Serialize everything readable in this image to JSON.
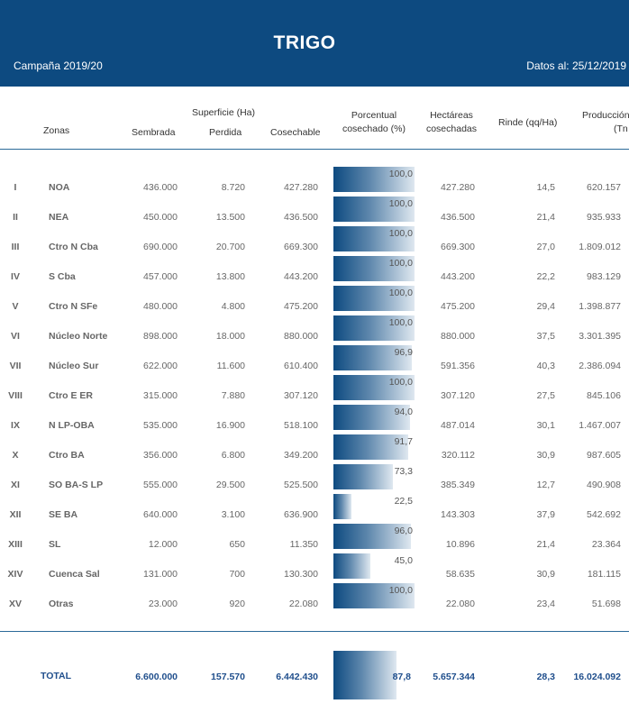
{
  "header": {
    "title": "TRIGO",
    "campaign": "Campaña 2019/20",
    "date": "Datos al: 25/12/2019"
  },
  "columns": {
    "zonas": "Zonas",
    "superficie": "Superficie (Ha)",
    "sembrada": "Sembrada",
    "perdida": "Perdida",
    "cosechable": "Cosechable",
    "porcentual_1": "Porcentual",
    "porcentual_2": "cosechado (%)",
    "hectareas_1": "Hectáreas",
    "hectareas_2": "cosechadas",
    "rinde": "Rinde (qq/Ha)",
    "produccion_1": "Producción",
    "produccion_2": "(Tn"
  },
  "rows": [
    {
      "num": "I",
      "zona": "NOA",
      "sembrada": "436.000",
      "perdida": "8.720",
      "cosechable": "427.280",
      "pct_label": "100,0",
      "pct": 100.0,
      "hectareas": "427.280",
      "rinde": "14,5",
      "produccion": "620.157"
    },
    {
      "num": "II",
      "zona": "NEA",
      "sembrada": "450.000",
      "perdida": "13.500",
      "cosechable": "436.500",
      "pct_label": "100,0",
      "pct": 100.0,
      "hectareas": "436.500",
      "rinde": "21,4",
      "produccion": "935.933"
    },
    {
      "num": "III",
      "zona": "Ctro N Cba",
      "sembrada": "690.000",
      "perdida": "20.700",
      "cosechable": "669.300",
      "pct_label": "100,0",
      "pct": 100.0,
      "hectareas": "669.300",
      "rinde": "27,0",
      "produccion": "1.809.012"
    },
    {
      "num": "IV",
      "zona": "S Cba",
      "sembrada": "457.000",
      "perdida": "13.800",
      "cosechable": "443.200",
      "pct_label": "100,0",
      "pct": 100.0,
      "hectareas": "443.200",
      "rinde": "22,2",
      "produccion": "983.129"
    },
    {
      "num": "V",
      "zona": "Ctro N SFe",
      "sembrada": "480.000",
      "perdida": "4.800",
      "cosechable": "475.200",
      "pct_label": "100,0",
      "pct": 100.0,
      "hectareas": "475.200",
      "rinde": "29,4",
      "produccion": "1.398.877"
    },
    {
      "num": "VI",
      "zona": "Núcleo Norte",
      "sembrada": "898.000",
      "perdida": "18.000",
      "cosechable": "880.000",
      "pct_label": "100,0",
      "pct": 100.0,
      "hectareas": "880.000",
      "rinde": "37,5",
      "produccion": "3.301.395"
    },
    {
      "num": "VII",
      "zona": "Núcleo Sur",
      "sembrada": "622.000",
      "perdida": "11.600",
      "cosechable": "610.400",
      "pct_label": "96,9",
      "pct": 96.9,
      "hectareas": "591.356",
      "rinde": "40,3",
      "produccion": "2.386.094"
    },
    {
      "num": "VIII",
      "zona": "Ctro E ER",
      "sembrada": "315.000",
      "perdida": "7.880",
      "cosechable": "307.120",
      "pct_label": "100,0",
      "pct": 100.0,
      "hectareas": "307.120",
      "rinde": "27,5",
      "produccion": "845.106"
    },
    {
      "num": "IX",
      "zona": "N LP-OBA",
      "sembrada": "535.000",
      "perdida": "16.900",
      "cosechable": "518.100",
      "pct_label": "94,0",
      "pct": 94.0,
      "hectareas": "487.014",
      "rinde": "30,1",
      "produccion": "1.467.007"
    },
    {
      "num": "X",
      "zona": "Ctro BA",
      "sembrada": "356.000",
      "perdida": "6.800",
      "cosechable": "349.200",
      "pct_label": "91,7",
      "pct": 91.7,
      "hectareas": "320.112",
      "rinde": "30,9",
      "produccion": "987.605"
    },
    {
      "num": "XI",
      "zona": "SO BA-S LP",
      "sembrada": "555.000",
      "perdida": "29.500",
      "cosechable": "525.500",
      "pct_label": "73,3",
      "pct": 73.3,
      "hectareas": "385.349",
      "rinde": "12,7",
      "produccion": "490.908"
    },
    {
      "num": "XII",
      "zona": "SE BA",
      "sembrada": "640.000",
      "perdida": "3.100",
      "cosechable": "636.900",
      "pct_label": "22,5",
      "pct": 22.5,
      "hectareas": "143.303",
      "rinde": "37,9",
      "produccion": "542.692"
    },
    {
      "num": "XIII",
      "zona": "SL",
      "sembrada": "12.000",
      "perdida": "650",
      "cosechable": "11.350",
      "pct_label": "96,0",
      "pct": 96.0,
      "hectareas": "10.896",
      "rinde": "21,4",
      "produccion": "23.364"
    },
    {
      "num": "XIV",
      "zona": "Cuenca Sal",
      "sembrada": "131.000",
      "perdida": "700",
      "cosechable": "130.300",
      "pct_label": "45,0",
      "pct": 45.0,
      "hectareas": "58.635",
      "rinde": "30,9",
      "produccion": "181.115"
    },
    {
      "num": "XV",
      "zona": "Otras",
      "sembrada": "23.000",
      "perdida": "920",
      "cosechable": "22.080",
      "pct_label": "100,0",
      "pct": 100.0,
      "hectareas": "22.080",
      "rinde": "23,4",
      "produccion": "51.698"
    }
  ],
  "total": {
    "label": "TOTAL",
    "sembrada": "6.600.000",
    "perdida": "157.570",
    "cosechable": "6.442.430",
    "pct_label": "87,8",
    "pct": 87.8,
    "hectareas": "5.657.344",
    "rinde": "28,3",
    "produccion": "16.024.092"
  },
  "colors": {
    "header_bg": "#0d4a80",
    "bar_dark": "#0d4a80",
    "bar_light": "#dfe8f0",
    "total_text": "#1f4e8c",
    "rule": "#2b6a99"
  }
}
